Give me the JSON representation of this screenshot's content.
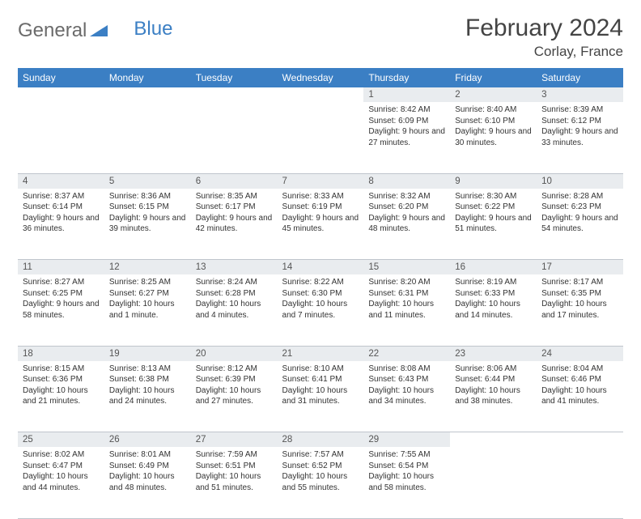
{
  "logo": {
    "text1": "General",
    "text2": "Blue"
  },
  "title": "February 2024",
  "location": "Corlay, France",
  "colors": {
    "header_bg": "#3b7fc4",
    "header_text": "#ffffff",
    "daynum_bg": "#e9ecef",
    "border": "#bfc5cc",
    "text": "#333333"
  },
  "weekdays": [
    "Sunday",
    "Monday",
    "Tuesday",
    "Wednesday",
    "Thursday",
    "Friday",
    "Saturday"
  ],
  "weeks": [
    [
      null,
      null,
      null,
      null,
      {
        "n": "1",
        "sunrise": "8:42 AM",
        "sunset": "6:09 PM",
        "daylight": "9 hours and 27 minutes."
      },
      {
        "n": "2",
        "sunrise": "8:40 AM",
        "sunset": "6:10 PM",
        "daylight": "9 hours and 30 minutes."
      },
      {
        "n": "3",
        "sunrise": "8:39 AM",
        "sunset": "6:12 PM",
        "daylight": "9 hours and 33 minutes."
      }
    ],
    [
      {
        "n": "4",
        "sunrise": "8:37 AM",
        "sunset": "6:14 PM",
        "daylight": "9 hours and 36 minutes."
      },
      {
        "n": "5",
        "sunrise": "8:36 AM",
        "sunset": "6:15 PM",
        "daylight": "9 hours and 39 minutes."
      },
      {
        "n": "6",
        "sunrise": "8:35 AM",
        "sunset": "6:17 PM",
        "daylight": "9 hours and 42 minutes."
      },
      {
        "n": "7",
        "sunrise": "8:33 AM",
        "sunset": "6:19 PM",
        "daylight": "9 hours and 45 minutes."
      },
      {
        "n": "8",
        "sunrise": "8:32 AM",
        "sunset": "6:20 PM",
        "daylight": "9 hours and 48 minutes."
      },
      {
        "n": "9",
        "sunrise": "8:30 AM",
        "sunset": "6:22 PM",
        "daylight": "9 hours and 51 minutes."
      },
      {
        "n": "10",
        "sunrise": "8:28 AM",
        "sunset": "6:23 PM",
        "daylight": "9 hours and 54 minutes."
      }
    ],
    [
      {
        "n": "11",
        "sunrise": "8:27 AM",
        "sunset": "6:25 PM",
        "daylight": "9 hours and 58 minutes."
      },
      {
        "n": "12",
        "sunrise": "8:25 AM",
        "sunset": "6:27 PM",
        "daylight": "10 hours and 1 minute."
      },
      {
        "n": "13",
        "sunrise": "8:24 AM",
        "sunset": "6:28 PM",
        "daylight": "10 hours and 4 minutes."
      },
      {
        "n": "14",
        "sunrise": "8:22 AM",
        "sunset": "6:30 PM",
        "daylight": "10 hours and 7 minutes."
      },
      {
        "n": "15",
        "sunrise": "8:20 AM",
        "sunset": "6:31 PM",
        "daylight": "10 hours and 11 minutes."
      },
      {
        "n": "16",
        "sunrise": "8:19 AM",
        "sunset": "6:33 PM",
        "daylight": "10 hours and 14 minutes."
      },
      {
        "n": "17",
        "sunrise": "8:17 AM",
        "sunset": "6:35 PM",
        "daylight": "10 hours and 17 minutes."
      }
    ],
    [
      {
        "n": "18",
        "sunrise": "8:15 AM",
        "sunset": "6:36 PM",
        "daylight": "10 hours and 21 minutes."
      },
      {
        "n": "19",
        "sunrise": "8:13 AM",
        "sunset": "6:38 PM",
        "daylight": "10 hours and 24 minutes."
      },
      {
        "n": "20",
        "sunrise": "8:12 AM",
        "sunset": "6:39 PM",
        "daylight": "10 hours and 27 minutes."
      },
      {
        "n": "21",
        "sunrise": "8:10 AM",
        "sunset": "6:41 PM",
        "daylight": "10 hours and 31 minutes."
      },
      {
        "n": "22",
        "sunrise": "8:08 AM",
        "sunset": "6:43 PM",
        "daylight": "10 hours and 34 minutes."
      },
      {
        "n": "23",
        "sunrise": "8:06 AM",
        "sunset": "6:44 PM",
        "daylight": "10 hours and 38 minutes."
      },
      {
        "n": "24",
        "sunrise": "8:04 AM",
        "sunset": "6:46 PM",
        "daylight": "10 hours and 41 minutes."
      }
    ],
    [
      {
        "n": "25",
        "sunrise": "8:02 AM",
        "sunset": "6:47 PM",
        "daylight": "10 hours and 44 minutes."
      },
      {
        "n": "26",
        "sunrise": "8:01 AM",
        "sunset": "6:49 PM",
        "daylight": "10 hours and 48 minutes."
      },
      {
        "n": "27",
        "sunrise": "7:59 AM",
        "sunset": "6:51 PM",
        "daylight": "10 hours and 51 minutes."
      },
      {
        "n": "28",
        "sunrise": "7:57 AM",
        "sunset": "6:52 PM",
        "daylight": "10 hours and 55 minutes."
      },
      {
        "n": "29",
        "sunrise": "7:55 AM",
        "sunset": "6:54 PM",
        "daylight": "10 hours and 58 minutes."
      },
      null,
      null
    ]
  ],
  "labels": {
    "sunrise": "Sunrise:",
    "sunset": "Sunset:",
    "daylight": "Daylight:"
  }
}
